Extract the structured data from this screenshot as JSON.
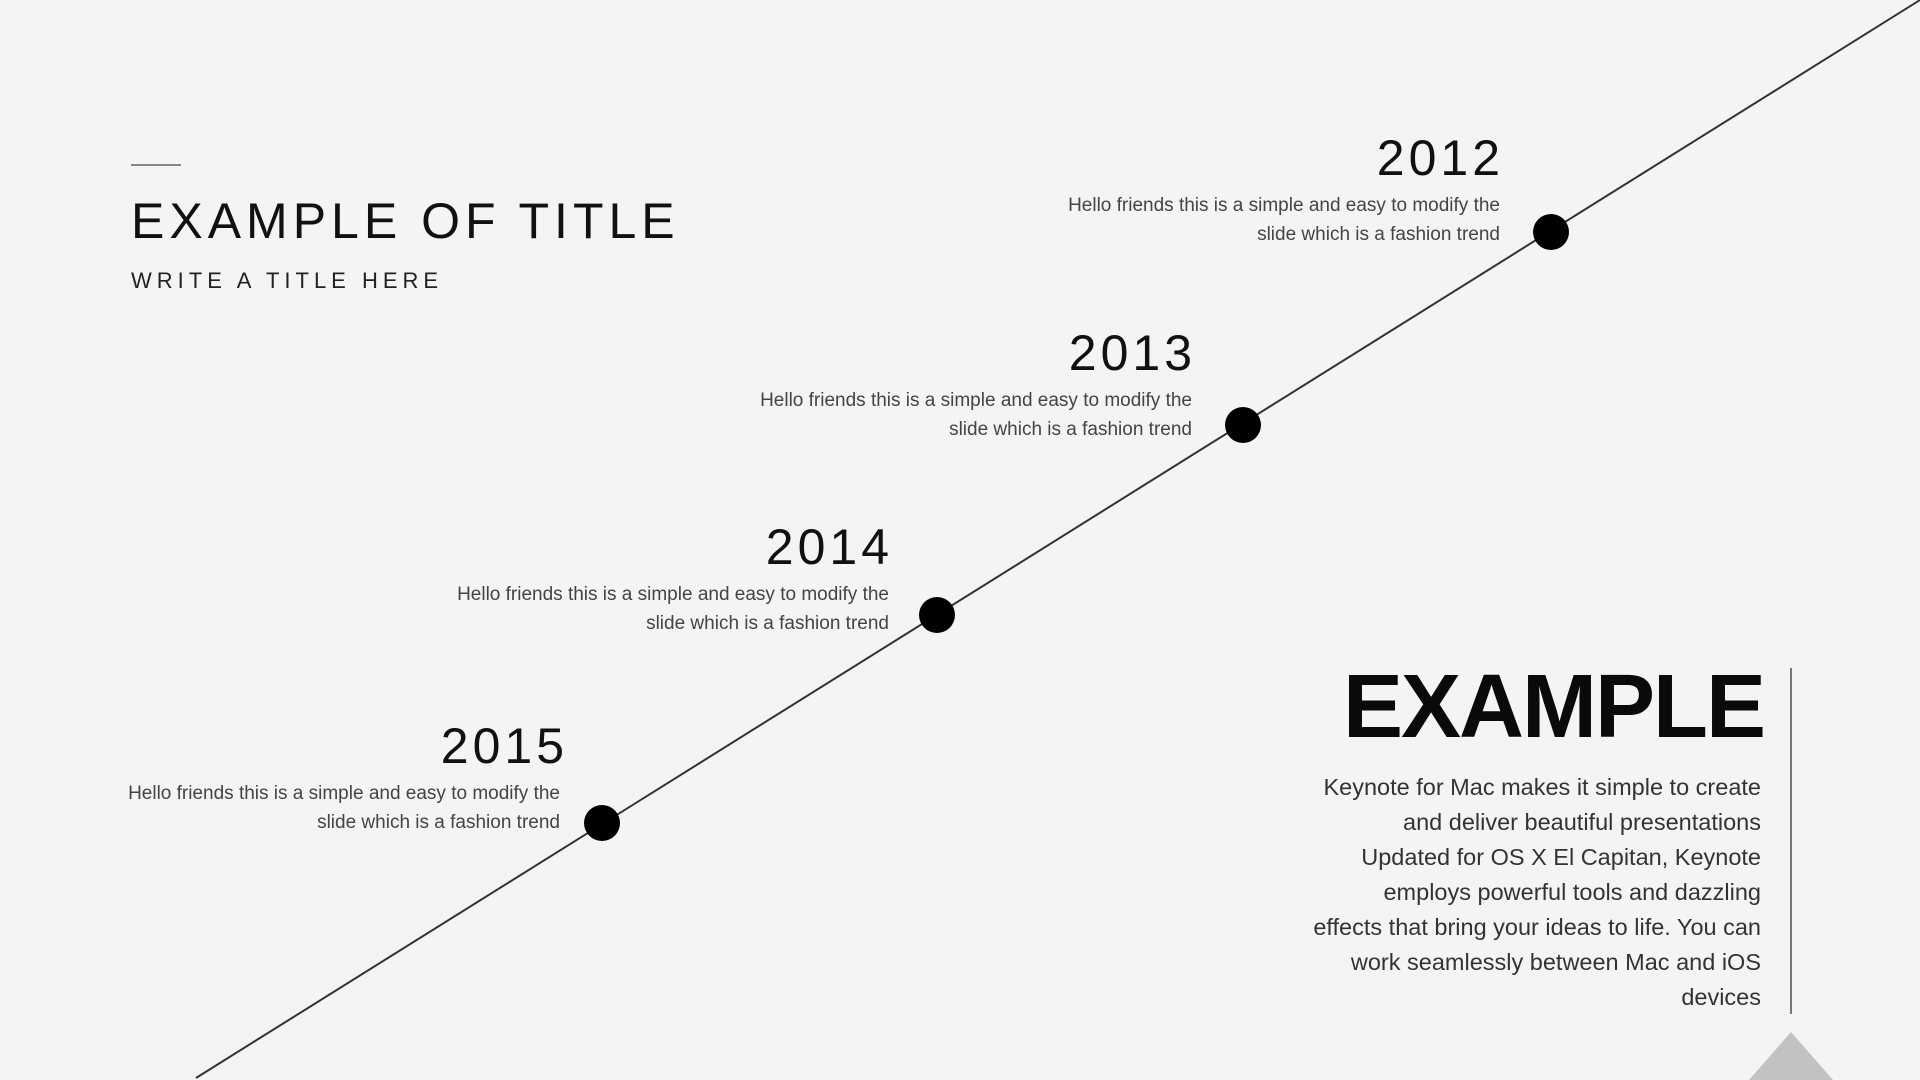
{
  "header": {
    "title": "EXAMPLE OF TITLE",
    "subtitle": "WRITE A TITLE HERE"
  },
  "timeline": [
    {
      "year": "2012",
      "line1": "Hello friends this is a simple and easy to modify the",
      "line2": "slide which is a fashion trend"
    },
    {
      "year": "2013",
      "line1": "Hello friends this is a simple and easy to modify the",
      "line2": "slide which is a fashion trend"
    },
    {
      "year": "2014",
      "line1": "Hello friends this is a simple and easy to modify the",
      "line2": "slide which is a fashion trend"
    },
    {
      "year": "2015",
      "line1": "Hello friends this is a simple and easy to modify the",
      "line2": "slide which is a fashion trend"
    }
  ],
  "example": {
    "heading": "EXAMPLE",
    "lines": [
      "Keynote for Mac makes it simple to create",
      "and deliver beautiful presentations",
      "Updated for OS X El Capitan, Keynote",
      "employs powerful tools and dazzling",
      "effects that bring your ideas to life. You can",
      "work seamlessly between Mac and iOS",
      "devices"
    ]
  },
  "colors": {
    "background": "#f4f4f4",
    "line": "#333333",
    "dot": "#000000",
    "triangle": "#c2c2c2"
  }
}
